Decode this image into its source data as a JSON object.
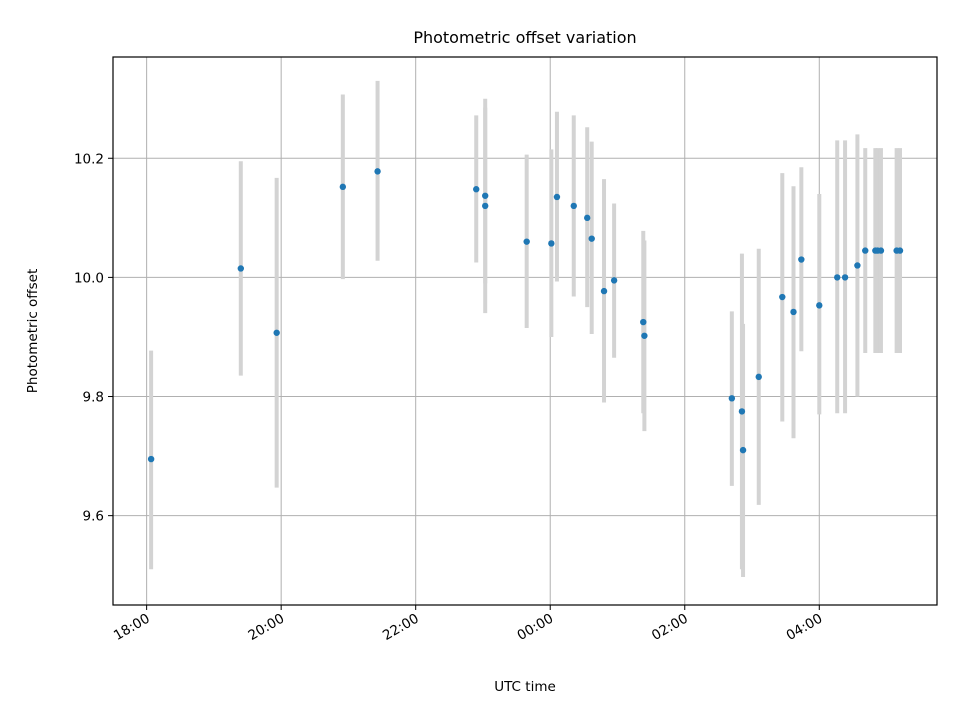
{
  "chart_data": {
    "type": "scatter",
    "title": "Photometric offset variation",
    "xlabel": "UTC time",
    "ylabel": "Photometric offset",
    "x_is_time": true,
    "xlim": [
      "17:30",
      "05:45"
    ],
    "ylim": [
      9.45,
      10.37
    ],
    "x_ticks": [
      "18:00",
      "20:00",
      "22:00",
      "00:00",
      "02:00",
      "04:00"
    ],
    "y_ticks": [
      9.6,
      9.8,
      10.0,
      10.2
    ],
    "y_tick_labels": [
      "9.6",
      "9.8",
      "10.0",
      "10.2"
    ],
    "grid": true,
    "colors": {
      "point": "#1f77b4",
      "errorbar": "#d3d3d3",
      "grid": "#b0b0b0"
    },
    "points": [
      {
        "x": "18:04",
        "y": 9.695,
        "lo": 9.51,
        "hi": 9.877
      },
      {
        "x": "19:24",
        "y": 10.015,
        "lo": 9.835,
        "hi": 10.195
      },
      {
        "x": "19:56",
        "y": 9.907,
        "lo": 9.647,
        "hi": 10.167
      },
      {
        "x": "20:55",
        "y": 10.152,
        "lo": 9.997,
        "hi": 10.307
      },
      {
        "x": "21:26",
        "y": 10.178,
        "lo": 10.028,
        "hi": 10.33
      },
      {
        "x": "22:54",
        "y": 10.148,
        "lo": 10.025,
        "hi": 10.272
      },
      {
        "x": "23:02",
        "y": 10.137,
        "lo": 9.99,
        "hi": 10.285
      },
      {
        "x": "23:02",
        "y": 10.12,
        "lo": 9.94,
        "hi": 10.3
      },
      {
        "x": "23:39",
        "y": 10.06,
        "lo": 9.915,
        "hi": 10.206
      },
      {
        "x": "00:01",
        "y": 10.057,
        "lo": 9.9,
        "hi": 10.215
      },
      {
        "x": "00:06",
        "y": 10.135,
        "lo": 9.993,
        "hi": 10.278
      },
      {
        "x": "00:21",
        "y": 10.12,
        "lo": 9.968,
        "hi": 10.272
      },
      {
        "x": "00:33",
        "y": 10.1,
        "lo": 9.95,
        "hi": 10.252
      },
      {
        "x": "00:37",
        "y": 10.065,
        "lo": 9.905,
        "hi": 10.228
      },
      {
        "x": "00:48",
        "y": 9.977,
        "lo": 9.79,
        "hi": 10.165
      },
      {
        "x": "00:57",
        "y": 9.995,
        "lo": 9.865,
        "hi": 10.124
      },
      {
        "x": "01:23",
        "y": 9.925,
        "lo": 9.772,
        "hi": 10.078
      },
      {
        "x": "01:24",
        "y": 9.902,
        "lo": 9.742,
        "hi": 10.062
      },
      {
        "x": "02:42",
        "y": 9.797,
        "lo": 9.65,
        "hi": 9.943
      },
      {
        "x": "02:51",
        "y": 9.775,
        "lo": 9.51,
        "hi": 10.04
      },
      {
        "x": "02:52",
        "y": 9.71,
        "lo": 9.497,
        "hi": 9.922
      },
      {
        "x": "03:06",
        "y": 9.833,
        "lo": 9.618,
        "hi": 10.048
      },
      {
        "x": "03:27",
        "y": 9.967,
        "lo": 9.758,
        "hi": 10.175
      },
      {
        "x": "03:37",
        "y": 9.942,
        "lo": 9.73,
        "hi": 10.153
      },
      {
        "x": "03:44",
        "y": 10.03,
        "lo": 9.876,
        "hi": 10.185
      },
      {
        "x": "04:00",
        "y": 9.953,
        "lo": 9.77,
        "hi": 10.14
      },
      {
        "x": "04:16",
        "y": 10.0,
        "lo": 9.772,
        "hi": 10.23
      },
      {
        "x": "04:23",
        "y": 10.0,
        "lo": 9.772,
        "hi": 10.23
      },
      {
        "x": "04:34",
        "y": 10.02,
        "lo": 9.8,
        "hi": 10.24
      },
      {
        "x": "04:41",
        "y": 10.045,
        "lo": 9.873,
        "hi": 10.217
      },
      {
        "x": "04:50",
        "y": 10.045,
        "lo": 9.873,
        "hi": 10.217
      },
      {
        "x": "04:52",
        "y": 10.045,
        "lo": 9.873,
        "hi": 10.217
      },
      {
        "x": "04:55",
        "y": 10.045,
        "lo": 9.873,
        "hi": 10.217
      },
      {
        "x": "05:09",
        "y": 10.045,
        "lo": 9.873,
        "hi": 10.217
      },
      {
        "x": "05:12",
        "y": 10.045,
        "lo": 9.873,
        "hi": 10.217
      }
    ]
  }
}
